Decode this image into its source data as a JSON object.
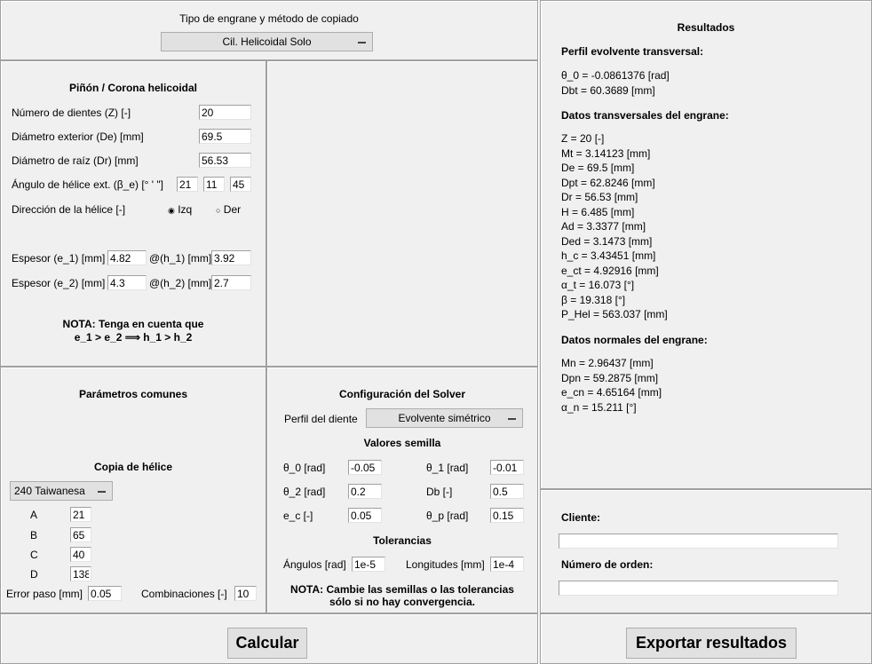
{
  "top": {
    "label": "Tipo de engrane y método de copiado",
    "type": "Cil. Helicoidal Solo"
  },
  "pinion": {
    "title": "Piñón / Corona helicoidal",
    "z_label": "Número de dientes (Z) [-]",
    "z": "20",
    "de_label": "Diámetro exterior (De) [mm]",
    "de": "69.5",
    "dr_label": "Diámetro de raíz (Dr) [mm]",
    "dr": "56.53",
    "beta_label": "Ángulo de hélice ext. (β_e) [°  '  \"]",
    "beta_deg": "21",
    "beta_min": "11",
    "beta_sec": "45",
    "dir_label": "Dirección de la hélice [-]",
    "dir_izq": "Izq",
    "dir_der": "Der",
    "dir_selected": "Izq",
    "e1_label": "Espesor (e_1) [mm]",
    "e1": "4.82",
    "h1_label": "@(h_1) [mm]",
    "h1": "3.92",
    "e2_label": "Espesor (e_2) [mm]",
    "e2": "4.3",
    "h2_label": "@(h_2) [mm]",
    "h2": "2.7",
    "note1": "NOTA: Tenga en cuenta que",
    "note2": "e_1 > e_2 ⟹ h_1 > h_2"
  },
  "common": {
    "title": "Parámetros comunes",
    "copy_title": "Copia de hélice",
    "machine": "240 Taiwanesa",
    "A_label": "A",
    "A": "21",
    "B_label": "B",
    "B": "65",
    "C_label": "C",
    "C": "40",
    "D_label": "D",
    "D": "138",
    "err_label": "Error paso [mm]",
    "err": "0.05",
    "comb_label": "Combinaciones [-]",
    "comb": "10"
  },
  "solver": {
    "title": "Configuración del Solver",
    "profile_label": "Perfil del diente",
    "profile": "Evolvente simétrico",
    "seeds_title": "Valores semilla",
    "t0_label": "θ_0 [rad]",
    "t0": "-0.05",
    "t1_label": "θ_1 [rad]",
    "t1": "-0.01",
    "t2_label": "θ_2 [rad]",
    "t2": "0.2",
    "db_label": "Db [-]",
    "db": "0.5",
    "ec_label": "e_c [-]",
    "ec": "0.05",
    "tp_label": "θ_p [rad]",
    "tp": "0.15",
    "tol_title": "Tolerancias",
    "ang_label": "Ángulos [rad]",
    "ang": "1e-5",
    "len_label": "Longitudes [mm]",
    "len": "1e-4",
    "note1": "NOTA: Cambie las semillas o las tolerancias",
    "note2": "sólo si no hay convergencia."
  },
  "results": {
    "title": "Resultados",
    "s1": "Perfil evolvente transversal:",
    "l1": [
      "θ_0 = -0.0861376 [rad]",
      "Dbt = 60.3689 [mm]"
    ],
    "s2": "Datos transversales del engrane:",
    "l2": [
      "Z = 20 [-]",
      "Mt = 3.14123 [mm]",
      "De = 69.5 [mm]",
      "Dpt = 62.8246 [mm]",
      "Dr = 56.53 [mm]",
      "H = 6.485 [mm]",
      "Ad = 3.3377 [mm]",
      "Ded = 3.1473 [mm]",
      "h_c = 3.43451 [mm]",
      "e_ct = 4.92916 [mm]",
      "α_t = 16.073 [°]",
      "β = 19.318 [°]",
      "P_Hel = 563.037 [mm]"
    ],
    "s3": "Datos normales del engrane:",
    "l3": [
      "Mn = 2.96437 [mm]",
      "Dpn = 59.2875 [mm]",
      "e_cn = 4.65164 [mm]",
      "α_n = 15.211 [°]"
    ]
  },
  "client": {
    "client_label": "Cliente:",
    "client": "",
    "order_label": "Número de orden:",
    "order": ""
  },
  "buttons": {
    "calc": "Calcular",
    "export": "Exportar resultados"
  }
}
